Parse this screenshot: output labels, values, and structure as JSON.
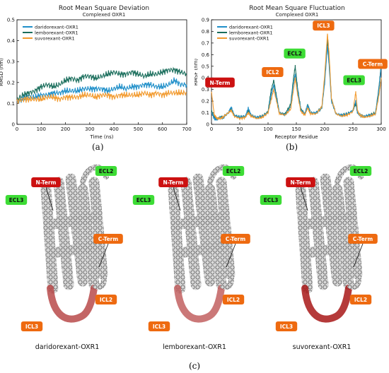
{
  "chart_data": [
    {
      "type": "line",
      "panel": "(a)",
      "title": "Root Mean Square Deviation",
      "subtitle": "Complexed OXR1",
      "xlabel": "Time (ns)",
      "ylabel": "RMSD (nm)",
      "xlim": [
        0,
        700
      ],
      "ylim": [
        0,
        0.5
      ],
      "xticks": [
        "0",
        "100",
        "200",
        "300",
        "400",
        "500",
        "600",
        "700"
      ],
      "yticks": [
        "0",
        "0.1",
        "0.2",
        "0.3",
        "0.4",
        "0.5"
      ],
      "legend_position": "upper-left",
      "grid": false,
      "series": [
        {
          "name": "daridorexant-OXR1",
          "color": "#1f8fc9",
          "x": [
            0,
            25,
            50,
            75,
            100,
            125,
            150,
            175,
            200,
            225,
            250,
            275,
            300,
            325,
            350,
            375,
            400,
            425,
            450,
            475,
            500,
            525,
            550,
            575,
            600,
            625,
            650,
            675,
            700
          ],
          "values": [
            0.11,
            0.12,
            0.13,
            0.13,
            0.14,
            0.14,
            0.15,
            0.15,
            0.16,
            0.16,
            0.16,
            0.17,
            0.17,
            0.17,
            0.17,
            0.16,
            0.17,
            0.18,
            0.17,
            0.18,
            0.18,
            0.19,
            0.19,
            0.18,
            0.18,
            0.19,
            0.21,
            0.19,
            0.19
          ]
        },
        {
          "name": "lemborexant-OXR1",
          "color": "#1a6e5c",
          "x": [
            0,
            25,
            50,
            75,
            100,
            125,
            150,
            175,
            200,
            225,
            250,
            275,
            300,
            325,
            350,
            375,
            400,
            425,
            450,
            475,
            500,
            525,
            550,
            575,
            600,
            625,
            650,
            675,
            700
          ],
          "values": [
            0.12,
            0.14,
            0.15,
            0.16,
            0.18,
            0.19,
            0.18,
            0.19,
            0.21,
            0.22,
            0.21,
            0.23,
            0.23,
            0.22,
            0.23,
            0.24,
            0.25,
            0.24,
            0.24,
            0.25,
            0.24,
            0.23,
            0.24,
            0.24,
            0.25,
            0.26,
            0.26,
            0.25,
            0.24
          ]
        },
        {
          "name": "suvorexant-OXR1",
          "color": "#f29a2e",
          "x": [
            0,
            25,
            50,
            75,
            100,
            125,
            150,
            175,
            200,
            225,
            250,
            275,
            300,
            325,
            350,
            375,
            400,
            425,
            450,
            475,
            500,
            525,
            550,
            575,
            600,
            625,
            650,
            675,
            700
          ],
          "values": [
            0.11,
            0.12,
            0.12,
            0.12,
            0.12,
            0.13,
            0.13,
            0.12,
            0.13,
            0.13,
            0.13,
            0.14,
            0.14,
            0.13,
            0.14,
            0.14,
            0.13,
            0.14,
            0.14,
            0.14,
            0.14,
            0.15,
            0.14,
            0.15,
            0.14,
            0.15,
            0.15,
            0.15,
            0.15
          ]
        }
      ]
    },
    {
      "type": "line",
      "panel": "(b)",
      "title": "Root Mean Square Fluctuation",
      "subtitle": "Complexed OXR1",
      "xlabel": "Receptor Residue",
      "ylabel": "RMSF (nm)",
      "xlim": [
        0,
        300
      ],
      "ylim": [
        0,
        0.9
      ],
      "xticks": [
        "0",
        "50",
        "100",
        "150",
        "200",
        "250",
        "300"
      ],
      "yticks": [
        "0",
        "0.1",
        "0.2",
        "0.3",
        "0.4",
        "0.5",
        "0.6",
        "0.7",
        "0.8",
        "0.9"
      ],
      "legend_position": "upper-left",
      "grid": false,
      "annotations": [
        {
          "text": "N-Term",
          "color": "#cc1111",
          "x": 15,
          "y": 0.36
        },
        {
          "text": "ICL2",
          "color": "#ee6a10",
          "x": 108,
          "y": 0.45
        },
        {
          "text": "ECL2",
          "color": "#3ddc35",
          "x": 147,
          "y": 0.61
        },
        {
          "text": "ICL3",
          "color": "#ee6a10",
          "x": 198,
          "y": 0.85
        },
        {
          "text": "ECL3",
          "color": "#3ddc35",
          "x": 252,
          "y": 0.38
        },
        {
          "text": "C-Term",
          "color": "#ee6a10",
          "x": 285,
          "y": 0.52
        }
      ],
      "series": [
        {
          "name": "daridorexant-OXR1",
          "color": "#1f8fc9",
          "x": [
            0,
            5,
            10,
            15,
            20,
            30,
            35,
            40,
            50,
            60,
            65,
            70,
            80,
            90,
            100,
            105,
            110,
            115,
            120,
            130,
            140,
            145,
            148,
            152,
            158,
            165,
            170,
            175,
            185,
            195,
            200,
            205,
            208,
            212,
            220,
            230,
            240,
            250,
            255,
            258,
            262,
            270,
            280,
            290,
            296,
            300
          ],
          "values": [
            0.1,
            0.05,
            0.04,
            0.06,
            0.05,
            0.1,
            0.15,
            0.08,
            0.06,
            0.07,
            0.14,
            0.08,
            0.06,
            0.07,
            0.1,
            0.24,
            0.34,
            0.22,
            0.1,
            0.08,
            0.15,
            0.36,
            0.43,
            0.3,
            0.12,
            0.09,
            0.16,
            0.1,
            0.1,
            0.14,
            0.35,
            0.68,
            0.5,
            0.2,
            0.09,
            0.08,
            0.09,
            0.12,
            0.2,
            0.1,
            0.08,
            0.07,
            0.08,
            0.09,
            0.3,
            0.5
          ]
        },
        {
          "name": "lemborexant-OXR1",
          "color": "#1a6e5c",
          "x": [
            0,
            5,
            10,
            15,
            20,
            30,
            35,
            40,
            50,
            60,
            65,
            70,
            80,
            90,
            100,
            105,
            110,
            115,
            120,
            130,
            140,
            145,
            148,
            152,
            158,
            165,
            170,
            175,
            185,
            195,
            200,
            205,
            208,
            212,
            220,
            230,
            240,
            250,
            255,
            258,
            262,
            270,
            280,
            290,
            296,
            300
          ],
          "values": [
            0.12,
            0.06,
            0.05,
            0.06,
            0.06,
            0.1,
            0.14,
            0.08,
            0.06,
            0.07,
            0.12,
            0.08,
            0.06,
            0.07,
            0.11,
            0.28,
            0.38,
            0.24,
            0.1,
            0.09,
            0.17,
            0.4,
            0.5,
            0.32,
            0.13,
            0.09,
            0.17,
            0.1,
            0.1,
            0.14,
            0.38,
            0.72,
            0.55,
            0.22,
            0.09,
            0.08,
            0.09,
            0.12,
            0.18,
            0.1,
            0.08,
            0.07,
            0.08,
            0.1,
            0.32,
            0.52
          ]
        },
        {
          "name": "suvorexant-OXR1",
          "color": "#f29a2e",
          "x": [
            0,
            5,
            10,
            15,
            20,
            30,
            35,
            40,
            50,
            60,
            65,
            70,
            80,
            90,
            100,
            105,
            110,
            115,
            120,
            130,
            140,
            145,
            148,
            152,
            158,
            165,
            170,
            175,
            185,
            195,
            200,
            205,
            208,
            212,
            220,
            230,
            240,
            250,
            255,
            258,
            262,
            270,
            280,
            290,
            296,
            300
          ],
          "values": [
            0.28,
            0.08,
            0.05,
            0.05,
            0.06,
            0.1,
            0.12,
            0.07,
            0.05,
            0.06,
            0.1,
            0.07,
            0.05,
            0.06,
            0.1,
            0.2,
            0.3,
            0.2,
            0.09,
            0.08,
            0.13,
            0.3,
            0.4,
            0.26,
            0.11,
            0.08,
            0.14,
            0.09,
            0.09,
            0.15,
            0.42,
            0.78,
            0.6,
            0.22,
            0.09,
            0.07,
            0.08,
            0.11,
            0.28,
            0.12,
            0.08,
            0.06,
            0.07,
            0.09,
            0.25,
            0.4
          ]
        }
      ]
    }
  ],
  "panel_labels": {
    "a": "(a)",
    "b": "(b)",
    "c": "(c)"
  },
  "proteins": [
    {
      "caption": "daridorexant-OXR1",
      "icl3_shade": "#b84a4a",
      "labels": {
        "nterm": "N-Term",
        "ecl2": "ECL2",
        "ecl3": "ECL3",
        "cterm": "C-Term",
        "icl2": "ICL2",
        "icl3": "ICL3"
      }
    },
    {
      "caption": "lemborexant-OXR1",
      "icl3_shade": "#c26060",
      "labels": {
        "nterm": "N-Term",
        "ecl2": "ECL2",
        "ecl3": "ECL3",
        "cterm": "C-Term",
        "icl2": "ICL2",
        "icl3": "ICL3"
      }
    },
    {
      "caption": "suvorexant-OXR1",
      "icl3_shade": "#a81818",
      "labels": {
        "nterm": "N-Term",
        "ecl2": "ECL2",
        "ecl3": "ECL3",
        "cterm": "C-Term",
        "icl2": "ICL2",
        "icl3": "ICL3"
      }
    }
  ],
  "label_colors": {
    "nterm": "#cc1111",
    "ecl": "#3ddc35",
    "orange": "#ee6a10"
  }
}
